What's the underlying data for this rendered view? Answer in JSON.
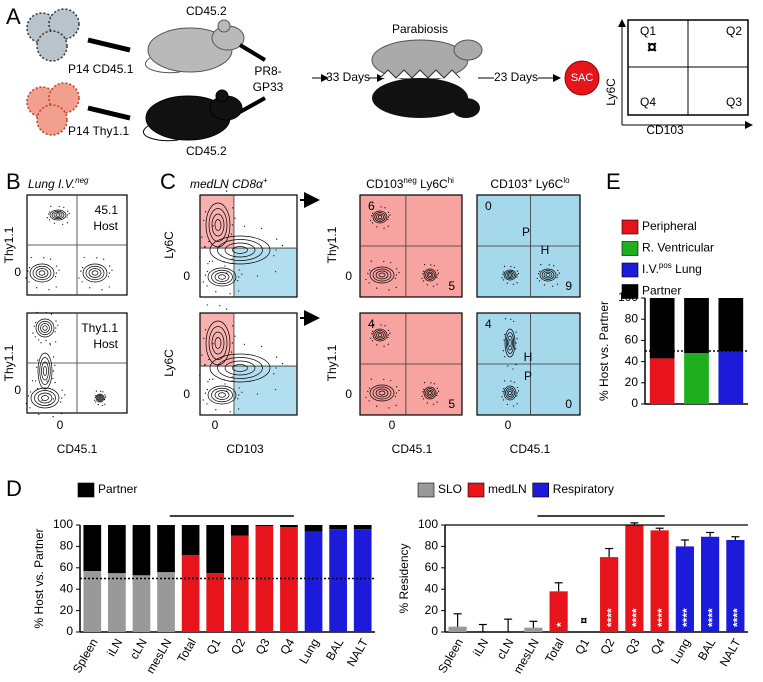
{
  "panel_labels": [
    "A",
    "B",
    "C",
    "D",
    "E"
  ],
  "panel_a": {
    "donor1": "P14 CD45.1",
    "donor2": "P14 Thy1.1",
    "host1": "CD45.2",
    "host2": "CD45.2",
    "infection": [
      "PR8-",
      "GP33"
    ],
    "step1": "33 Days",
    "parabiosis": "Parabiosis",
    "step2": "23 Days",
    "sac": "SAC",
    "gate": {
      "quadrants": [
        "Q1",
        "Q2",
        "Q4",
        "Q3"
      ],
      "marker": "¤",
      "ylabel": "Ly6C",
      "xlabel": "CD103"
    }
  },
  "panel_b": {
    "title": "Lung I.V.",
    "title_sup": "neg",
    "ylabel": "Thy1.1",
    "xlabel": "CD45.1",
    "tick": "0",
    "plots": [
      [
        "45.1",
        "Host"
      ],
      [
        "Thy1.1",
        "Host"
      ]
    ]
  },
  "panel_c": {
    "title": "medLN CD8α",
    "title_sup": "+",
    "ylabel": "Ly6C",
    "xlabel": "CD103",
    "tick": "0",
    "mid_title": [
      "CD103",
      "neg",
      " Ly6C",
      "hi"
    ],
    "right_title": [
      "CD103",
      "+",
      " Ly6C",
      "lo"
    ],
    "mid_ylabel": "Thy1.1",
    "mid_xlabel": "CD45.1",
    "mid_numbers": [
      [
        "6",
        "5"
      ],
      [
        "4",
        "5"
      ]
    ],
    "right_numbers": [
      [
        "0",
        "P",
        "H",
        "9"
      ],
      [
        "4",
        "H",
        "P",
        "0"
      ]
    ]
  },
  "chart_data": [
    {
      "type": "bar",
      "ylabel": "% Host vs. Partner",
      "categories": [
        "Spleen",
        "iLN",
        "cLN",
        "mesLN",
        "Total",
        "Q1",
        "Q2",
        "Q3",
        "Q4",
        "Lung",
        "BAL",
        "NALT"
      ],
      "series": [
        {
          "colors": [
            "#999999",
            "#999999",
            "#999999",
            "#999999",
            "#e8141b",
            "#e8141b",
            "#e8141b",
            "#e8141b",
            "#e8141b",
            "#1b1bd9",
            "#1b1bd9",
            "#1b1bd9"
          ],
          "values": [
            57,
            55,
            53,
            56,
            72,
            55,
            90,
            99,
            98,
            94,
            96,
            96
          ]
        },
        {
          "name": "Partner",
          "color": "#000000",
          "values": [
            43,
            45,
            47,
            44,
            28,
            45,
            10,
            1,
            2,
            6,
            4,
            4
          ]
        }
      ],
      "ylim": [
        0,
        100
      ],
      "yticks": [
        0,
        20,
        40,
        60,
        80,
        100
      ],
      "reference_line": 50,
      "annotation": "medLN"
    },
    {
      "type": "bar",
      "ylabel": "% Residency",
      "categories": [
        "Spleen",
        "iLN",
        "cLN",
        "mesLN",
        "Total",
        "Q1",
        "Q2",
        "Q3",
        "Q4",
        "Lung",
        "BAL",
        "NALT"
      ],
      "legend": [
        {
          "name": "SLO",
          "color": "#999999"
        },
        {
          "name": "medLN",
          "color": "#e8141b"
        },
        {
          "name": "Respiratory",
          "color": "#1b1bd9"
        }
      ],
      "series": [
        {
          "colors": [
            "#999999",
            "#999999",
            "#999999",
            "#999999",
            "#e8141b",
            "#e8141b",
            "#e8141b",
            "#e8141b",
            "#e8141b",
            "#1b1bd9",
            "#1b1bd9",
            "#1b1bd9"
          ],
          "values": [
            5,
            0,
            0,
            4,
            38,
            null,
            70,
            100,
            95,
            80,
            89,
            86
          ],
          "errors": [
            12,
            7,
            12,
            6,
            8,
            null,
            8,
            2,
            2,
            6,
            4,
            3
          ],
          "significance": [
            null,
            null,
            null,
            null,
            "*",
            null,
            "****",
            "****",
            "****",
            "****",
            "****",
            "****"
          ]
        }
      ],
      "missing_marker": "¤",
      "ylim": [
        0,
        100
      ],
      "yticks": [
        0,
        20,
        40,
        60,
        80,
        100
      ],
      "reference_line": 100,
      "annotation": "medLN"
    },
    {
      "type": "bar",
      "ylabel": "% Host vs. Partner",
      "legend": [
        {
          "name": "Peripheral",
          "color": "#e8141b"
        },
        {
          "name": "R. Ventricular",
          "color": "#1fae1f"
        },
        {
          "name": "I.V.",
          "sup": "pos",
          "after": " Lung",
          "color": "#1b1bd9"
        }
      ],
      "series": [
        {
          "colors": [
            "#e8141b",
            "#1fae1f",
            "#1b1bd9"
          ],
          "values": [
            43,
            48,
            50
          ]
        },
        {
          "name": "Partner",
          "color": "#000000",
          "values": [
            57,
            52,
            50
          ]
        }
      ],
      "ylim": [
        0,
        100
      ],
      "yticks": [
        0,
        20,
        40,
        60,
        80,
        100
      ],
      "reference_line": 50
    }
  ]
}
